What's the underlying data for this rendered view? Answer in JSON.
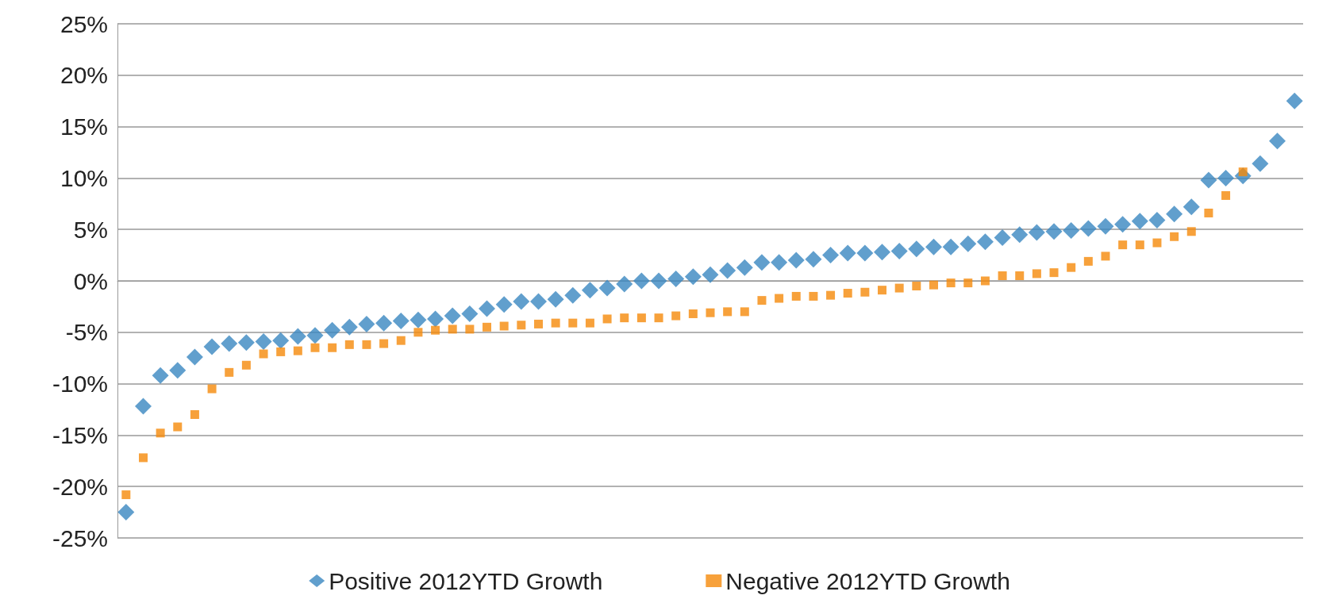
{
  "chart_data": {
    "type": "scatter",
    "categories": [
      null,
      null,
      null,
      null,
      null,
      null,
      null,
      null,
      null,
      null,
      null,
      null,
      null,
      null,
      null,
      null,
      null,
      null,
      null,
      null,
      null,
      null,
      null,
      null,
      null,
      null,
      null,
      null,
      null,
      null,
      null,
      null,
      null,
      null,
      null,
      null,
      null,
      null,
      null,
      null,
      null,
      null,
      null,
      null,
      null,
      null,
      null,
      null,
      null,
      null,
      null,
      null,
      null,
      null,
      null,
      null,
      null,
      null,
      null,
      null,
      null,
      null,
      null,
      null,
      null,
      null,
      null,
      null,
      null
    ],
    "series": [
      {
        "name": "Positive 2012YTD Growth",
        "color": "#3a87c0",
        "marker": "diamond",
        "values": [
          -22.5,
          -12.2,
          -9.2,
          -8.7,
          -7.4,
          -6.4,
          -6.1,
          -6.0,
          -5.9,
          -5.8,
          -5.4,
          -5.3,
          -4.8,
          -4.5,
          -4.2,
          -4.1,
          -3.9,
          -3.8,
          -3.7,
          -3.4,
          -3.2,
          -2.7,
          -2.3,
          -2.0,
          -2.0,
          -1.8,
          -1.4,
          -0.9,
          -0.7,
          -0.3,
          0.0,
          0.0,
          0.2,
          0.4,
          0.6,
          1.0,
          1.3,
          1.8,
          1.8,
          2.0,
          2.1,
          2.5,
          2.7,
          2.7,
          2.8,
          2.9,
          3.1,
          3.3,
          3.3,
          3.6,
          3.8,
          4.2,
          4.5,
          4.7,
          4.8,
          4.9,
          5.1,
          5.3,
          5.5,
          5.8,
          5.9,
          6.5,
          7.2,
          9.8,
          10.0,
          10.2,
          11.4,
          13.6,
          17.5
        ]
      },
      {
        "name": "Negative 2012YTD Growth",
        "color": "#f58a0a",
        "marker": "square",
        "values": [
          -20.8,
          -17.2,
          -14.8,
          -14.2,
          -13.0,
          -10.5,
          -8.9,
          -8.2,
          -7.1,
          -6.9,
          -6.8,
          -6.5,
          -6.5,
          -6.2,
          -6.2,
          -6.1,
          -5.8,
          -5.0,
          -4.8,
          -4.7,
          -4.7,
          -4.5,
          -4.4,
          -4.3,
          -4.2,
          -4.1,
          -4.1,
          -4.1,
          -3.7,
          -3.6,
          -3.6,
          -3.6,
          -3.4,
          -3.2,
          -3.1,
          -3.0,
          -3.0,
          -1.9,
          -1.7,
          -1.5,
          -1.5,
          -1.4,
          -1.2,
          -1.1,
          -0.9,
          -0.7,
          -0.5,
          -0.4,
          -0.2,
          -0.2,
          0.0,
          0.5,
          0.5,
          0.7,
          0.8,
          1.3,
          1.9,
          2.4,
          3.5,
          3.5,
          3.7,
          4.3,
          4.8,
          6.6,
          8.3,
          10.6,
          null,
          null,
          null
        ]
      }
    ],
    "ylim": [
      -25,
      25
    ],
    "yticks": [
      {
        "value": -25,
        "label": "-25%"
      },
      {
        "value": -20,
        "label": "-20%"
      },
      {
        "value": -15,
        "label": "-15%"
      },
      {
        "value": -10,
        "label": "-10%"
      },
      {
        "value": -5,
        "label": "-5%"
      },
      {
        "value": 0,
        "label": "0%"
      },
      {
        "value": 5,
        "label": "5%"
      },
      {
        "value": 10,
        "label": "10%"
      },
      {
        "value": 15,
        "label": "15%"
      },
      {
        "value": 20,
        "label": "20%"
      },
      {
        "value": 25,
        "label": "25%"
      }
    ],
    "grid": "y",
    "legend": "bottom",
    "tick_labels": "y"
  }
}
